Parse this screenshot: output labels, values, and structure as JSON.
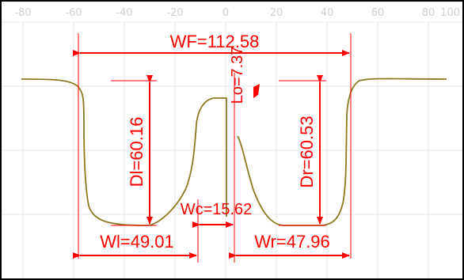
{
  "axis": {
    "ticks": [
      "-80",
      "-60",
      "-40",
      "-20",
      "0",
      "20",
      "40",
      "60",
      "80",
      "100"
    ]
  },
  "measurements": {
    "wf": "WF=112.58",
    "lo": "Lo=7.37",
    "dl": "Dl=60.16",
    "dr": "Dr=60.53",
    "wc": "Wc=15.62",
    "wl": "Wl=49.01",
    "wr": "Wr=47.96"
  },
  "colors": {
    "annotation": "#ff0000",
    "curve": "#8b7a22",
    "grid": "#e6e6e6",
    "tick_text": "#cfcfcf",
    "border": "#000000"
  }
}
